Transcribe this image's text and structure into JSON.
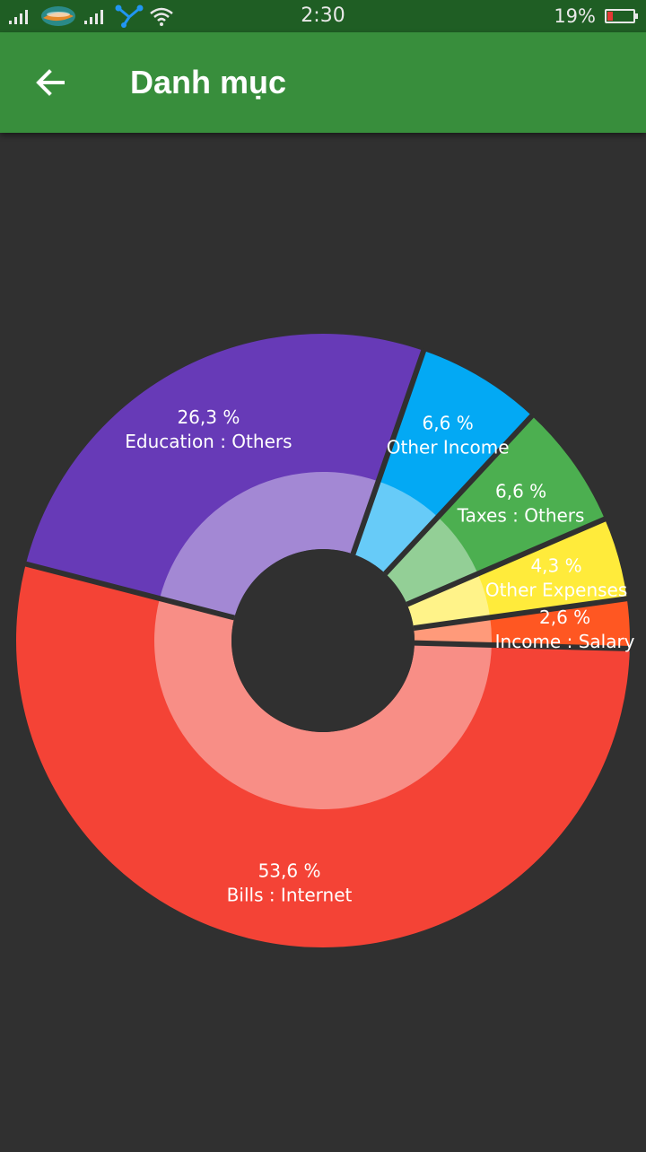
{
  "status_bar": {
    "time": "2:30",
    "battery": "19%",
    "icons": [
      "signal-icon",
      "carrier-logo",
      "signal-icon",
      "share-icon",
      "wifi-icon",
      "battery-icon"
    ]
  },
  "app_bar": {
    "title": "Danh mục",
    "back_icon": "arrow-back-icon",
    "color": "#388e3c"
  },
  "chart_data": {
    "type": "pie",
    "style": "donut",
    "slices": [
      {
        "label": "Bills : Internet",
        "percent_text": "53,6 %",
        "value": 53.6,
        "color": "#f44336"
      },
      {
        "label": "Education : Others",
        "percent_text": "26,3 %",
        "value": 26.3,
        "color": "#673ab7"
      },
      {
        "label": "Other Income",
        "percent_text": "6,6 %",
        "value": 6.6,
        "color": "#03a9f4"
      },
      {
        "label": "Taxes : Others",
        "percent_text": "6,6 %",
        "value": 6.6,
        "color": "#4caf50"
      },
      {
        "label": "Other Expenses",
        "percent_text": "4,3 %",
        "value": 4.3,
        "color": "#ffeb3b"
      },
      {
        "label": "Income : Salary",
        "percent_text": "2,6 %",
        "value": 2.6,
        "color": "#ff5722"
      }
    ],
    "background": "#303030"
  }
}
